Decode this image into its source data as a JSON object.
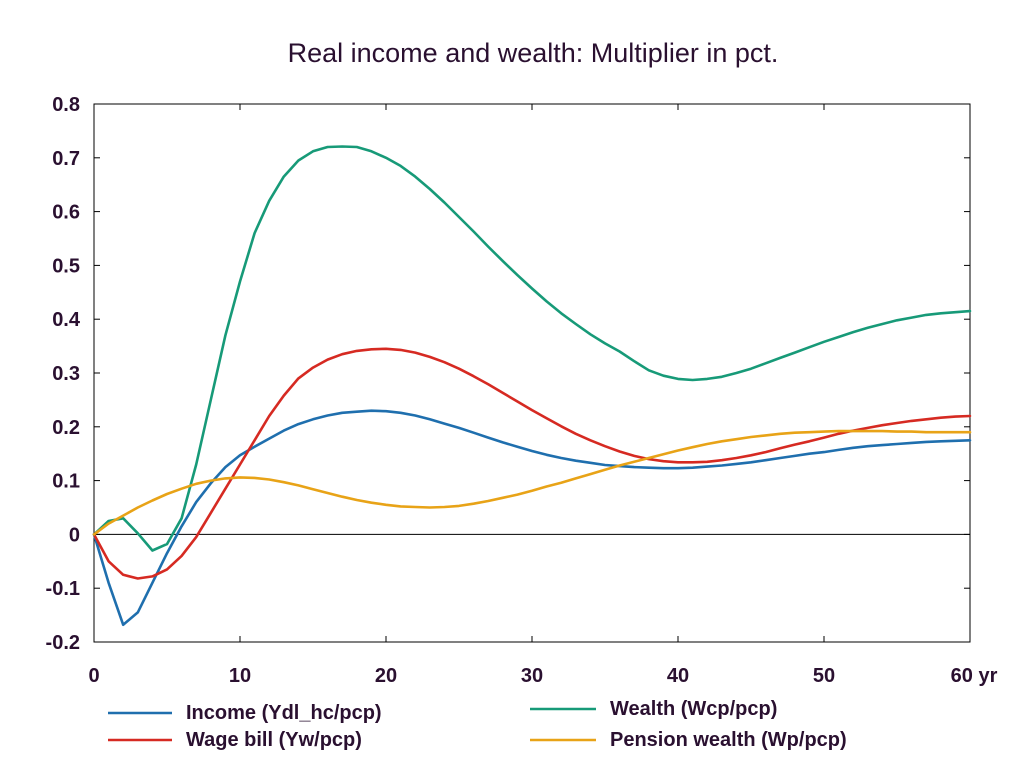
{
  "chart_data": {
    "type": "line",
    "title": "Real income and wealth: Multiplier in pct.",
    "xlabel": "",
    "ylabel": "",
    "xlim": [
      0,
      60
    ],
    "ylim": [
      -0.2,
      0.8
    ],
    "x_ticks": [
      0,
      10,
      20,
      30,
      40,
      50,
      60
    ],
    "x_tick_labels": [
      "0",
      "10",
      "20",
      "30",
      "40",
      "50",
      "60 yr"
    ],
    "y_ticks": [
      -0.2,
      -0.1,
      0,
      0.1,
      0.2,
      0.3,
      0.4,
      0.5,
      0.6,
      0.7,
      0.8
    ],
    "y_tick_labels": [
      "-0.2",
      "-0.1",
      "0",
      "0.1",
      "0.2",
      "0.3",
      "0.4",
      "0.5",
      "0.6",
      "0.7",
      "0.8"
    ],
    "grid": false,
    "zero_line": true,
    "legend_position": "bottom",
    "x": [
      0,
      1,
      2,
      3,
      4,
      5,
      6,
      7,
      8,
      9,
      10,
      11,
      12,
      13,
      14,
      15,
      16,
      17,
      18,
      19,
      20,
      21,
      22,
      23,
      24,
      25,
      26,
      27,
      28,
      29,
      30,
      31,
      32,
      33,
      34,
      35,
      36,
      37,
      38,
      39,
      40,
      41,
      42,
      43,
      44,
      45,
      46,
      47,
      48,
      49,
      50,
      51,
      52,
      53,
      54,
      55,
      56,
      57,
      58,
      59,
      60
    ],
    "series": [
      {
        "name": "Income (Ydl_hc/pcp)",
        "color": "#1f6fae",
        "values": [
          0,
          -0.09,
          -0.168,
          -0.145,
          -0.09,
          -0.035,
          0.015,
          0.06,
          0.095,
          0.125,
          0.147,
          0.163,
          0.178,
          0.193,
          0.205,
          0.214,
          0.221,
          0.226,
          0.228,
          0.23,
          0.229,
          0.226,
          0.221,
          0.214,
          0.206,
          0.198,
          0.189,
          0.18,
          0.171,
          0.163,
          0.155,
          0.148,
          0.142,
          0.137,
          0.133,
          0.129,
          0.127,
          0.125,
          0.124,
          0.123,
          0.123,
          0.124,
          0.126,
          0.128,
          0.131,
          0.134,
          0.138,
          0.142,
          0.146,
          0.15,
          0.153,
          0.157,
          0.161,
          0.164,
          0.166,
          0.168,
          0.17,
          0.172,
          0.173,
          0.174,
          0.175
        ]
      },
      {
        "name": "Wage bill (Yw/pcp)",
        "color": "#d62a22",
        "values": [
          0,
          -0.05,
          -0.075,
          -0.082,
          -0.078,
          -0.065,
          -0.04,
          -0.005,
          0.04,
          0.085,
          0.13,
          0.175,
          0.22,
          0.258,
          0.29,
          0.31,
          0.325,
          0.335,
          0.341,
          0.344,
          0.345,
          0.343,
          0.338,
          0.33,
          0.32,
          0.308,
          0.294,
          0.279,
          0.263,
          0.247,
          0.231,
          0.216,
          0.201,
          0.187,
          0.175,
          0.164,
          0.154,
          0.146,
          0.14,
          0.136,
          0.134,
          0.134,
          0.135,
          0.138,
          0.142,
          0.147,
          0.153,
          0.16,
          0.167,
          0.173,
          0.18,
          0.187,
          0.193,
          0.198,
          0.203,
          0.207,
          0.211,
          0.214,
          0.217,
          0.219,
          0.22
        ]
      },
      {
        "name": "Wealth (Wcp/pcp)",
        "color": "#179a78",
        "values": [
          0,
          0.025,
          0.03,
          0.002,
          -0.03,
          -0.018,
          0.03,
          0.13,
          0.25,
          0.37,
          0.47,
          0.56,
          0.62,
          0.665,
          0.695,
          0.712,
          0.72,
          0.721,
          0.72,
          0.712,
          0.7,
          0.685,
          0.665,
          0.642,
          0.617,
          0.59,
          0.563,
          0.535,
          0.508,
          0.482,
          0.457,
          0.433,
          0.411,
          0.391,
          0.372,
          0.355,
          0.34,
          0.322,
          0.305,
          0.295,
          0.289,
          0.287,
          0.289,
          0.293,
          0.3,
          0.308,
          0.318,
          0.328,
          0.338,
          0.348,
          0.358,
          0.367,
          0.376,
          0.384,
          0.391,
          0.398,
          0.403,
          0.408,
          0.411,
          0.413,
          0.415
        ]
      },
      {
        "name": "Pension wealth (Wp/pcp)",
        "color": "#e8a317",
        "values": [
          0,
          0.02,
          0.035,
          0.05,
          0.063,
          0.075,
          0.085,
          0.094,
          0.1,
          0.104,
          0.106,
          0.105,
          0.102,
          0.097,
          0.091,
          0.084,
          0.077,
          0.07,
          0.064,
          0.059,
          0.055,
          0.052,
          0.051,
          0.05,
          0.051,
          0.053,
          0.057,
          0.062,
          0.068,
          0.074,
          0.081,
          0.089,
          0.096,
          0.104,
          0.112,
          0.12,
          0.128,
          0.135,
          0.142,
          0.149,
          0.156,
          0.162,
          0.168,
          0.173,
          0.177,
          0.181,
          0.184,
          0.187,
          0.189,
          0.19,
          0.191,
          0.192,
          0.192,
          0.192,
          0.192,
          0.191,
          0.191,
          0.19,
          0.19,
          0.19,
          0.19
        ]
      }
    ]
  }
}
